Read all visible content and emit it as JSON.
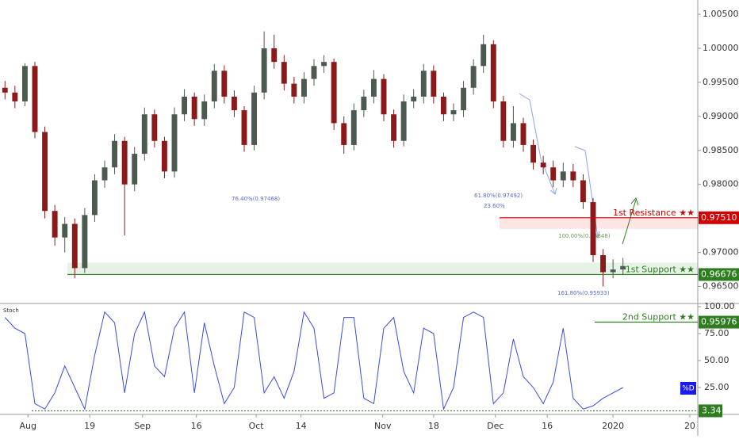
{
  "chart_data": {
    "type": "candlestick",
    "xlim": [
      0,
      70
    ],
    "xticks": [
      {
        "value": 2.8,
        "label": "Aug"
      },
      {
        "value": 9,
        "label": "19"
      },
      {
        "value": 14.3,
        "label": "Sep"
      },
      {
        "value": 19.7,
        "label": "16"
      },
      {
        "value": 25.7,
        "label": "Oct"
      },
      {
        "value": 30.2,
        "label": "14"
      },
      {
        "value": 38.4,
        "label": "Nov"
      },
      {
        "value": 43.5,
        "label": "18"
      },
      {
        "value": 49.7,
        "label": "Dec"
      },
      {
        "value": 54.9,
        "label": "16"
      },
      {
        "value": 61.5,
        "label": "2020"
      },
      {
        "value": 69.2,
        "label": "20"
      }
    ],
    "ylim": [
      0.9625,
      1.0071
    ],
    "yticks": [
      {
        "value": 1.005,
        "label": "1.00500"
      },
      {
        "value": 1.0,
        "label": "1.00000"
      },
      {
        "value": 0.995,
        "label": "0.99500"
      },
      {
        "value": 0.99,
        "label": "0.99000"
      },
      {
        "value": 0.985,
        "label": "0.98500"
      },
      {
        "value": 0.98,
        "label": "0.98000"
      },
      {
        "value": 0.975,
        "label": "0.97500"
      },
      {
        "value": 0.97,
        "label": "0.97000"
      },
      {
        "value": 0.965,
        "label": "0.96500"
      }
    ],
    "up_color": "#4d5a4f",
    "down_color": "#8b1a1a",
    "open": [
      0.9942,
      0.9935,
      0.9922,
      0.9974,
      0.9877,
      0.9761,
      0.9722,
      0.9742,
      0.9677,
      0.9755,
      0.9806,
      0.9825,
      0.9864,
      0.98,
      0.9845,
      0.9903,
      0.9864,
      0.9819,
      0.9903,
      0.9929,
      0.9896,
      0.9922,
      0.9967,
      0.9929,
      0.9909,
      0.9858,
      0.9935,
      1.0,
      0.998,
      0.9948,
      0.9929,
      0.9955,
      0.9974,
      0.998,
      0.989,
      0.9858,
      0.9909,
      0.9929,
      0.9955,
      0.9903,
      0.9864,
      0.9922,
      0.9929,
      0.9967,
      0.9929,
      0.9903,
      0.9909,
      0.9942,
      0.9974,
      1.0006,
      0.9922,
      0.9864,
      0.989,
      0.9858,
      0.9832,
      0.9825,
      0.9806,
      0.9819,
      0.9806,
      0.9774,
      0.9696,
      0.9671,
      0.9675
    ],
    "high": [
      0.9952,
      0.9945,
      0.9978,
      0.998,
      0.9885,
      0.977,
      0.9752,
      0.975,
      0.9765,
      0.9815,
      0.9835,
      0.9874,
      0.987,
      0.9855,
      0.9913,
      0.991,
      0.987,
      0.9913,
      0.994,
      0.9935,
      0.9932,
      0.9977,
      0.9975,
      0.9938,
      0.9915,
      0.9945,
      1.0025,
      1.002,
      0.999,
      0.9958,
      0.9965,
      0.9984,
      0.999,
      0.9985,
      0.99,
      0.9919,
      0.9939,
      0.9968,
      0.9962,
      0.991,
      0.9932,
      0.994,
      0.9977,
      0.9975,
      0.9935,
      0.9919,
      0.9952,
      0.9984,
      1.002,
      1.0012,
      0.993,
      0.9915,
      0.9898,
      0.9866,
      0.9842,
      0.9835,
      0.9832,
      0.983,
      0.9815,
      0.978,
      0.9705,
      0.969,
      0.9692
    ],
    "low": [
      0.9925,
      0.9912,
      0.9915,
      0.9868,
      0.975,
      0.971,
      0.97,
      0.9662,
      0.967,
      0.9745,
      0.9795,
      0.9815,
      0.9725,
      0.979,
      0.9835,
      0.9854,
      0.9809,
      0.981,
      0.9893,
      0.9886,
      0.9886,
      0.9912,
      0.9919,
      0.9899,
      0.9848,
      0.985,
      0.9925,
      0.997,
      0.9938,
      0.9919,
      0.9919,
      0.9945,
      0.9964,
      0.988,
      0.9845,
      0.985,
      0.9899,
      0.9919,
      0.9893,
      0.9854,
      0.9856,
      0.9912,
      0.9919,
      0.9919,
      0.9893,
      0.9893,
      0.9899,
      0.9932,
      0.9964,
      0.9912,
      0.9854,
      0.9854,
      0.9848,
      0.9822,
      0.9815,
      0.9796,
      0.9796,
      0.9796,
      0.9764,
      0.9686,
      0.965,
      0.9662,
      0.9668
    ],
    "close": [
      0.9935,
      0.9922,
      0.9974,
      0.9877,
      0.9761,
      0.9722,
      0.9742,
      0.9677,
      0.9755,
      0.9806,
      0.9825,
      0.9864,
      0.98,
      0.9845,
      0.9903,
      0.9864,
      0.9819,
      0.9903,
      0.9929,
      0.9896,
      0.9922,
      0.9967,
      0.9929,
      0.9909,
      0.9858,
      0.9935,
      1.0,
      0.998,
      0.9948,
      0.9929,
      0.9955,
      0.9974,
      0.998,
      0.989,
      0.9858,
      0.9909,
      0.9929,
      0.9955,
      0.9903,
      0.9864,
      0.9922,
      0.9929,
      0.9967,
      0.9929,
      0.9903,
      0.9909,
      0.9942,
      0.9974,
      1.0006,
      0.9922,
      0.9864,
      0.989,
      0.9858,
      0.9832,
      0.9825,
      0.9806,
      0.9819,
      0.9806,
      0.9774,
      0.9696,
      0.9671,
      0.9675,
      0.968
    ],
    "levels": [
      {
        "name": "1st Resistance ★★",
        "value": 0.9751,
        "value_label": "0.97510",
        "color": "#d40000"
      },
      {
        "name": "1st Support ★★",
        "value": 0.96676,
        "value_label": "0.96676",
        "color": "#2e7d1e"
      },
      {
        "name": "2nd Support ★★",
        "value": 0.95976,
        "value_label": "0.95976",
        "color": "#2e7d1e"
      }
    ],
    "fib_labels": [
      "76.40%(0.97468)",
      "61.80%(0.97492)",
      "23.60%",
      "100.00%(0.96848)",
      "161.80%(0.95933)"
    ],
    "stoch": {
      "title": "Stoch",
      "legend": "%D",
      "color": "#3b4cdb",
      "ylim": [
        0,
        100
      ],
      "yticks": [
        {
          "value": 100,
          "label": "100.00"
        },
        {
          "value": 75,
          "label": "75.00"
        },
        {
          "value": 50,
          "label": "50.00"
        },
        {
          "value": 25,
          "label": "25.00"
        }
      ],
      "low_value": 3.34,
      "values": [
        90,
        80,
        75,
        10,
        5,
        20,
        45,
        25,
        5,
        55,
        95,
        85,
        20,
        75,
        95,
        45,
        35,
        80,
        95,
        20,
        85,
        45,
        10,
        25,
        95,
        90,
        20,
        35,
        15,
        40,
        95,
        80,
        15,
        20,
        90,
        90,
        15,
        10,
        80,
        90,
        40,
        20,
        80,
        75,
        5,
        25,
        90,
        95,
        90,
        10,
        20,
        70,
        35,
        25,
        10,
        30,
        80,
        15,
        5,
        8,
        15,
        20,
        25
      ]
    }
  }
}
